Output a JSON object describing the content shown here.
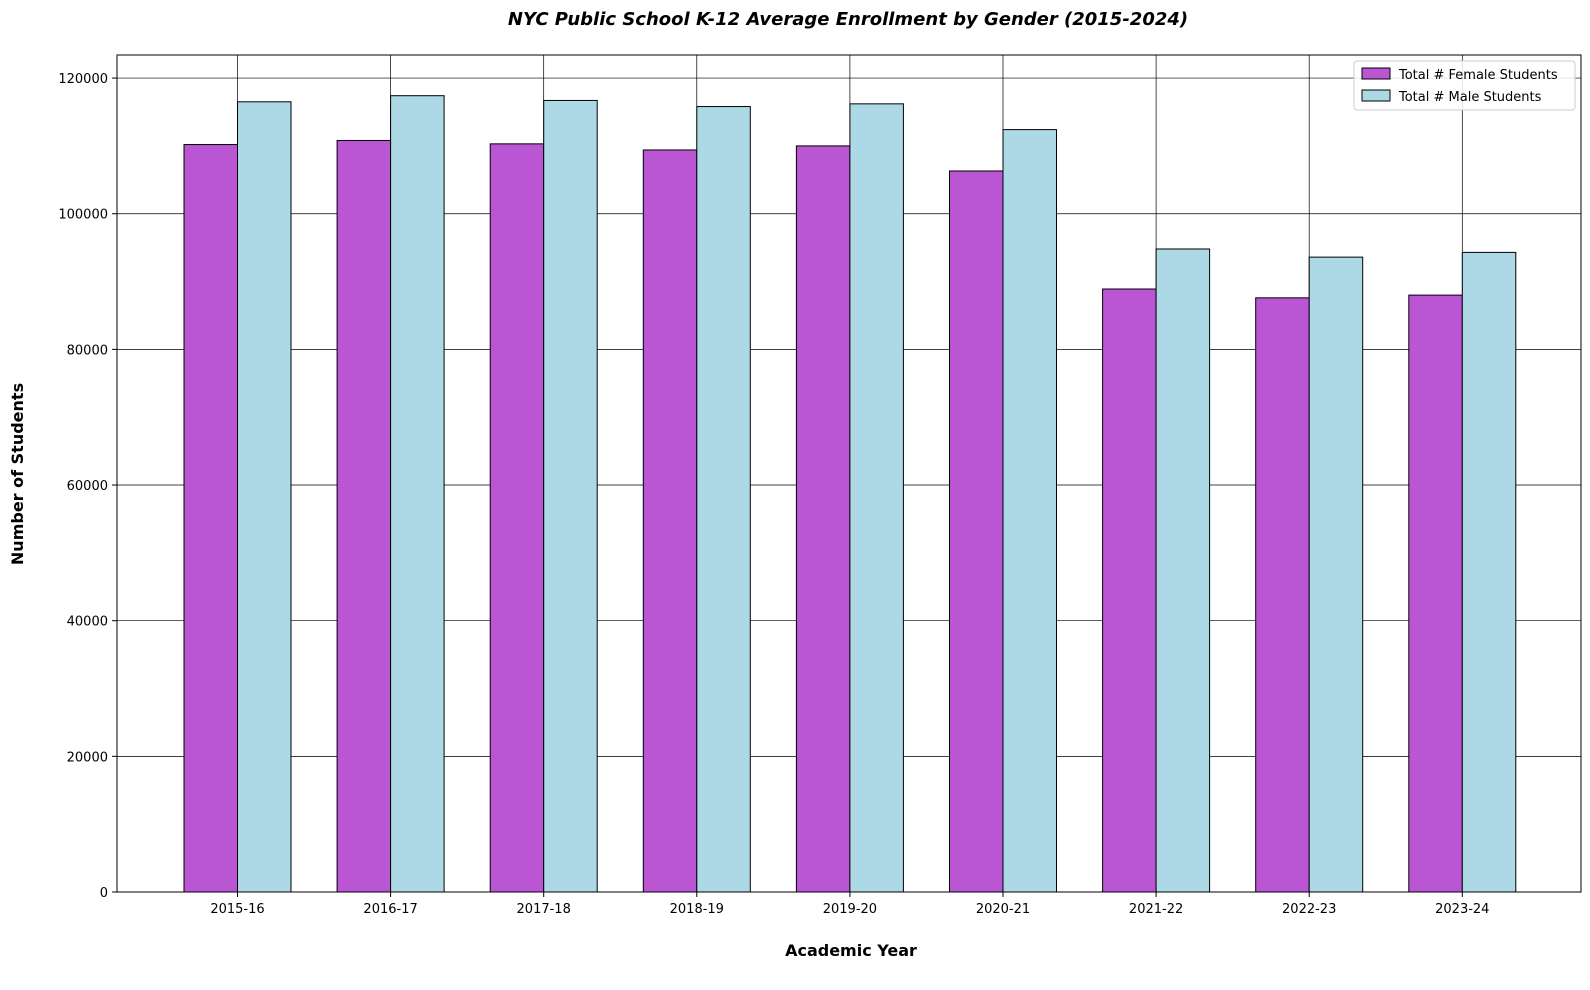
{
  "chart_data": {
    "type": "bar",
    "title": "NYC Public School K-12 Average Enrollment by Gender (2015-2024)",
    "xlabel": "Academic Year",
    "ylabel": "Number of Students",
    "categories": [
      "2015-16",
      "2016-17",
      "2017-18",
      "2018-19",
      "2019-20",
      "2020-21",
      "2021-22",
      "2022-23",
      "2023-24"
    ],
    "series": [
      {
        "name": "Total # Female Students",
        "color": "#ba55d3",
        "values": [
          110200,
          110800,
          110300,
          109400,
          110000,
          106300,
          88900,
          87600,
          88000
        ]
      },
      {
        "name": "Total # Male Students",
        "color": "#add8e6",
        "values": [
          116500,
          117400,
          116700,
          115800,
          116200,
          112400,
          94800,
          93600,
          94300
        ]
      }
    ],
    "ylim": [
      0,
      123400
    ],
    "yticks": [
      "0",
      "20000",
      "40000",
      "60000",
      "80000",
      "100000",
      "120000"
    ],
    "ytick_values": [
      0,
      20000,
      40000,
      60000,
      80000,
      100000,
      120000
    ],
    "grid": true,
    "legend_position": "top-right"
  }
}
